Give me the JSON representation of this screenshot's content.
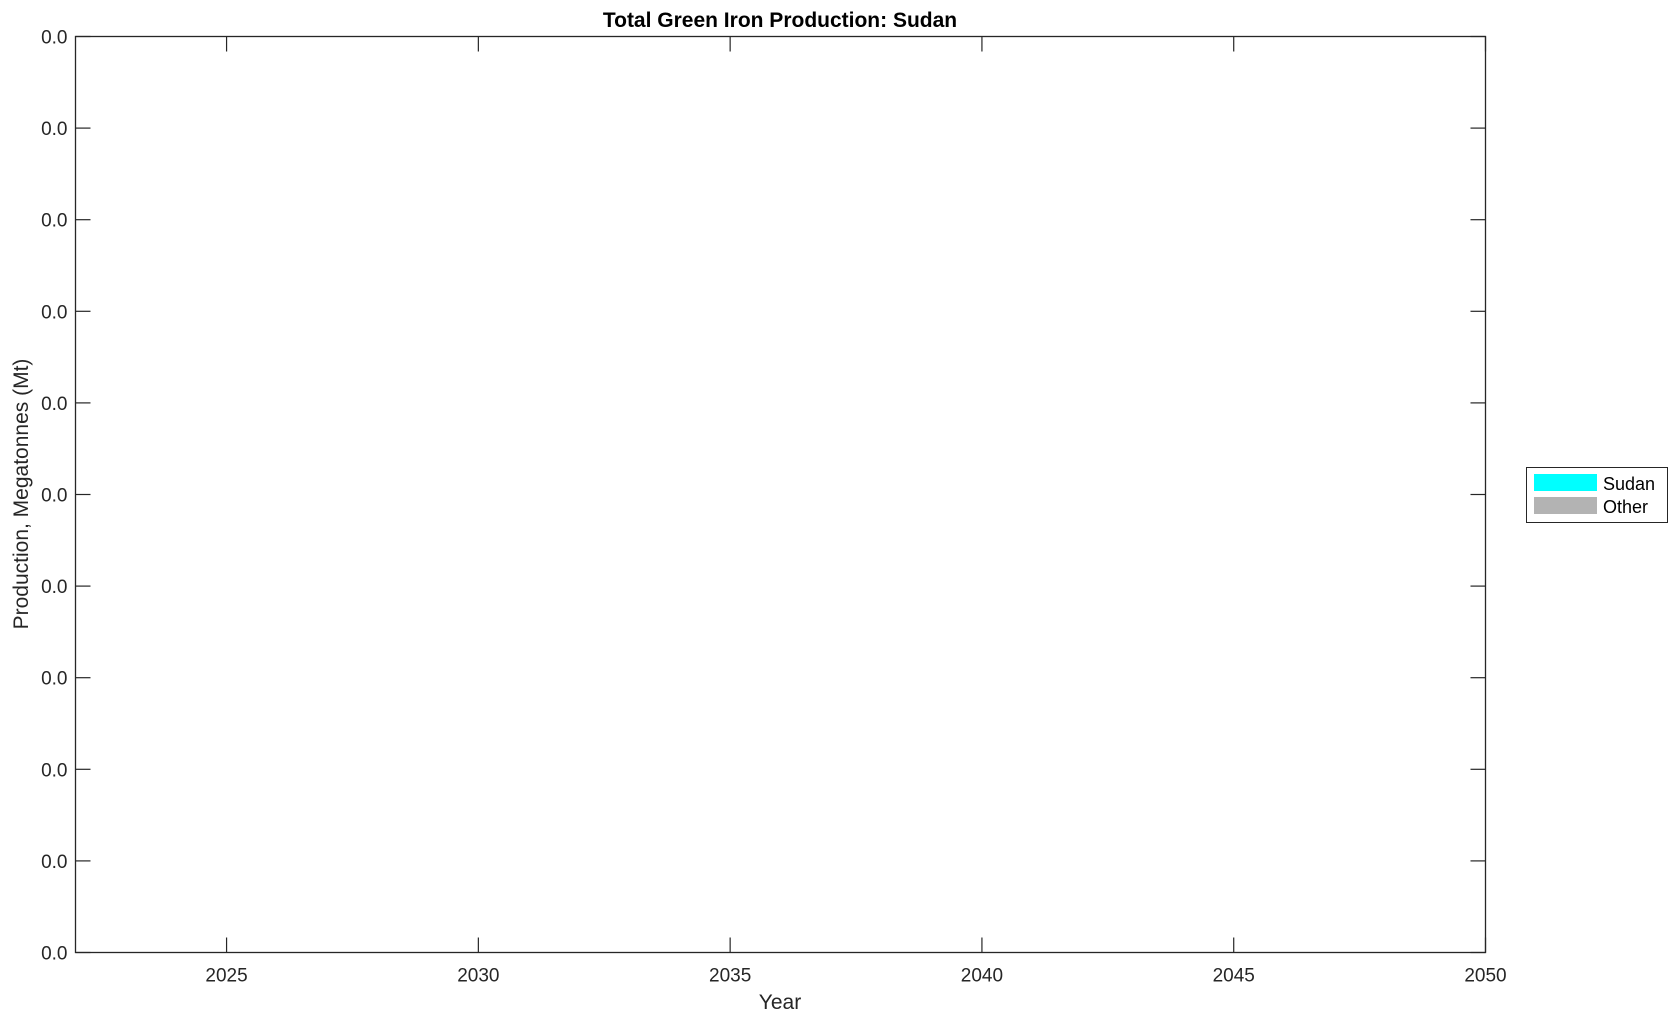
{
  "chart_data": {
    "type": "area",
    "title": "Total Green Iron Production: Sudan",
    "xlabel": "Year",
    "ylabel": "Production, Megatonnes (Mt)",
    "xlim": [
      2022,
      2050
    ],
    "x_ticks": [
      "2025",
      "2030",
      "2035",
      "2040",
      "2045",
      "2050"
    ],
    "x_tick_values": [
      2025,
      2030,
      2035,
      2040,
      2045,
      2050
    ],
    "y_ticks": [
      "0.0",
      "0.0",
      "0.0",
      "0.0",
      "0.0",
      "0.0",
      "0.0",
      "0.0",
      "0.0",
      "0.0",
      "0.0"
    ],
    "grid": false,
    "legend_placement": "right",
    "series": [
      {
        "name": "Sudan",
        "color": "#00ffff",
        "x": [],
        "values": []
      },
      {
        "name": "Other",
        "color": "#b3b3b3",
        "x": [],
        "values": []
      }
    ]
  }
}
